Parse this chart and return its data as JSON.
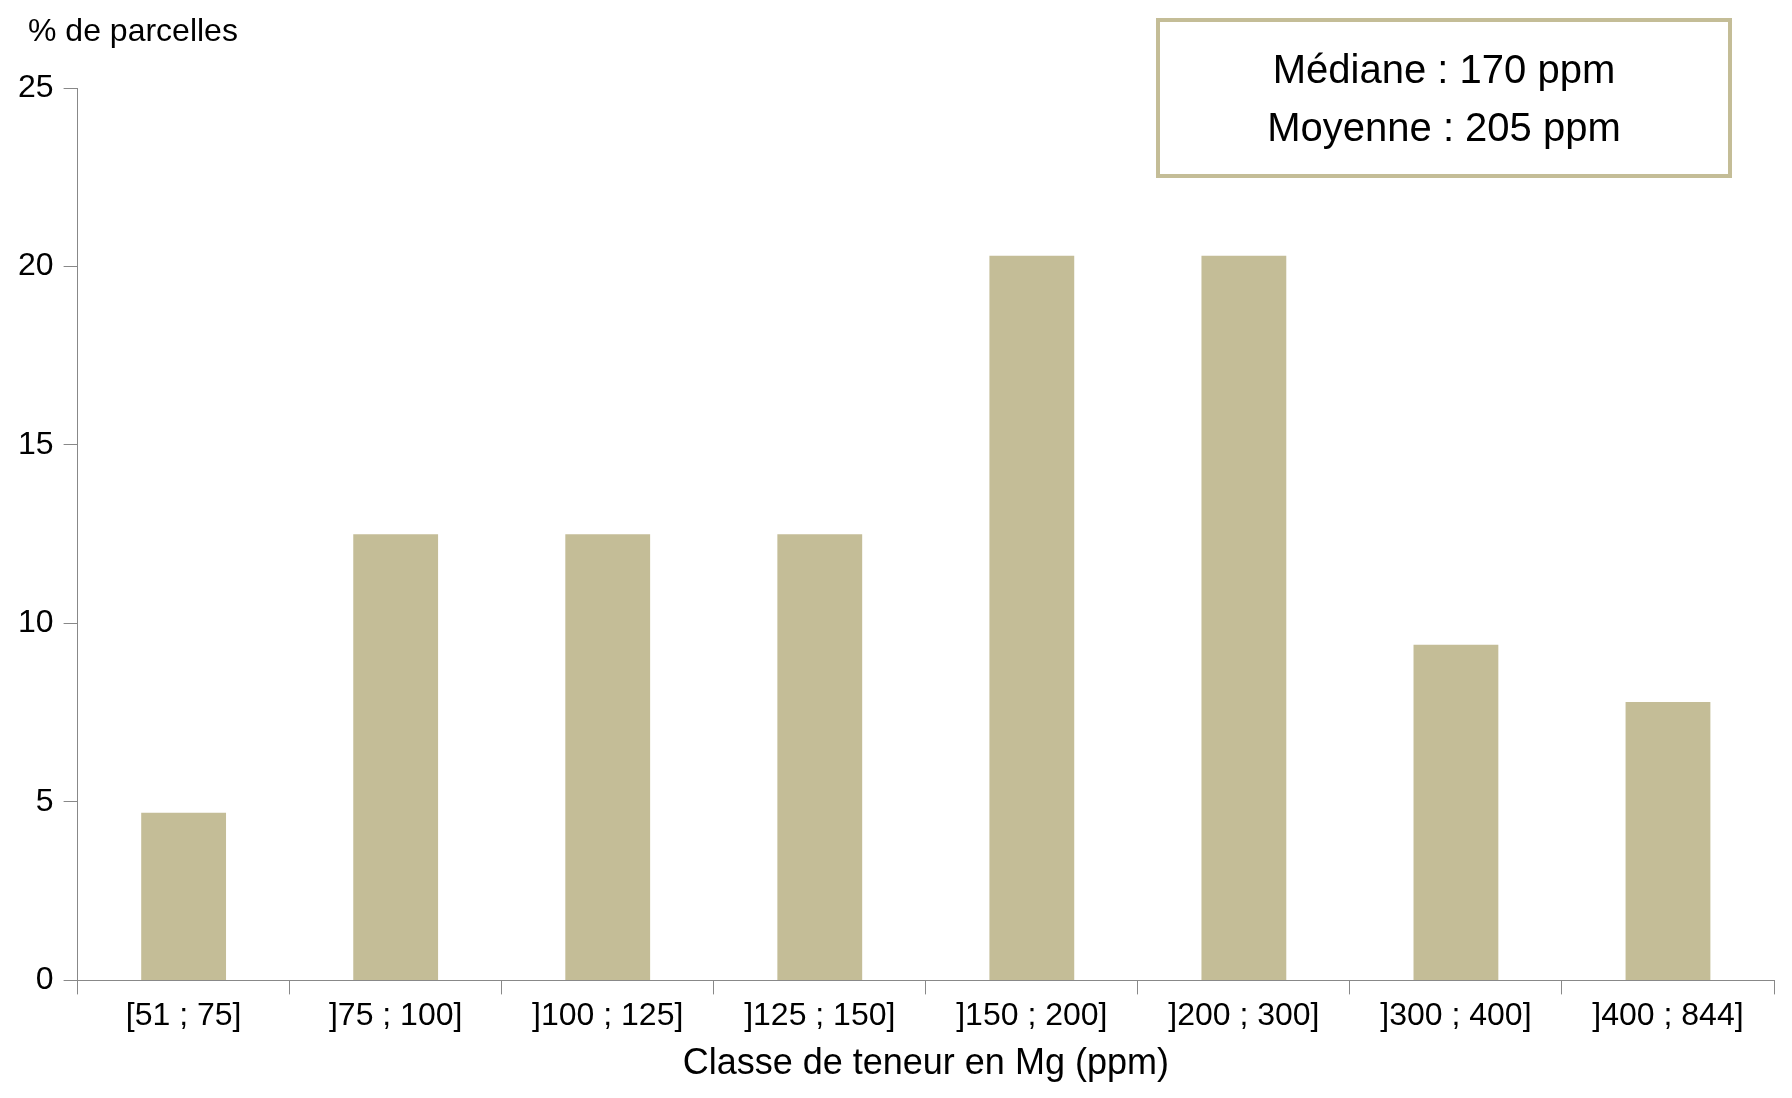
{
  "chart_data": {
    "type": "bar",
    "ylabel": "% de parcelles",
    "xlabel": "Classe de teneur en Mg (ppm)",
    "categories": [
      "[51 ; 75]",
      "]75 ; 100]",
      "]100 ; 125]",
      "]125 ; 150]",
      "]150 ; 200]",
      "]200 ; 300]",
      "]300 ; 400]",
      "]400 ; 844]"
    ],
    "values": [
      4.7,
      12.5,
      12.5,
      12.5,
      20.3,
      20.3,
      9.4,
      7.8
    ],
    "color": "#c4bd97",
    "ylim": [
      0,
      25
    ],
    "yticks": [
      0,
      5,
      10,
      15,
      20,
      25
    ],
    "grid": false,
    "legend": false,
    "annotations": [
      "Médiane : 170 ppm",
      "Moyenne : 205 ppm"
    ]
  }
}
